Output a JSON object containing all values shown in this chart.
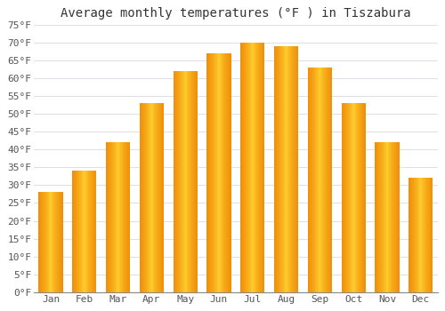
{
  "title": "Average monthly temperatures (°F ) in Tiszabura",
  "months": [
    "Jan",
    "Feb",
    "Mar",
    "Apr",
    "May",
    "Jun",
    "Jul",
    "Aug",
    "Sep",
    "Oct",
    "Nov",
    "Dec"
  ],
  "values": [
    28,
    34,
    42,
    53,
    62,
    67,
    70,
    69,
    63,
    53,
    42,
    32
  ],
  "bar_color_center": "#FFD040",
  "bar_color_edge": "#F0900A",
  "ylim": [
    0,
    75
  ],
  "yticks": [
    0,
    5,
    10,
    15,
    20,
    25,
    30,
    35,
    40,
    45,
    50,
    55,
    60,
    65,
    70,
    75
  ],
  "ytick_labels": [
    "0°F",
    "5°F",
    "10°F",
    "15°F",
    "20°F",
    "25°F",
    "30°F",
    "35°F",
    "40°F",
    "45°F",
    "50°F",
    "55°F",
    "60°F",
    "65°F",
    "70°F",
    "75°F"
  ],
  "background_color": "#ffffff",
  "grid_color": "#e0e0e8",
  "title_fontsize": 10,
  "tick_fontsize": 8,
  "font_family": "monospace"
}
